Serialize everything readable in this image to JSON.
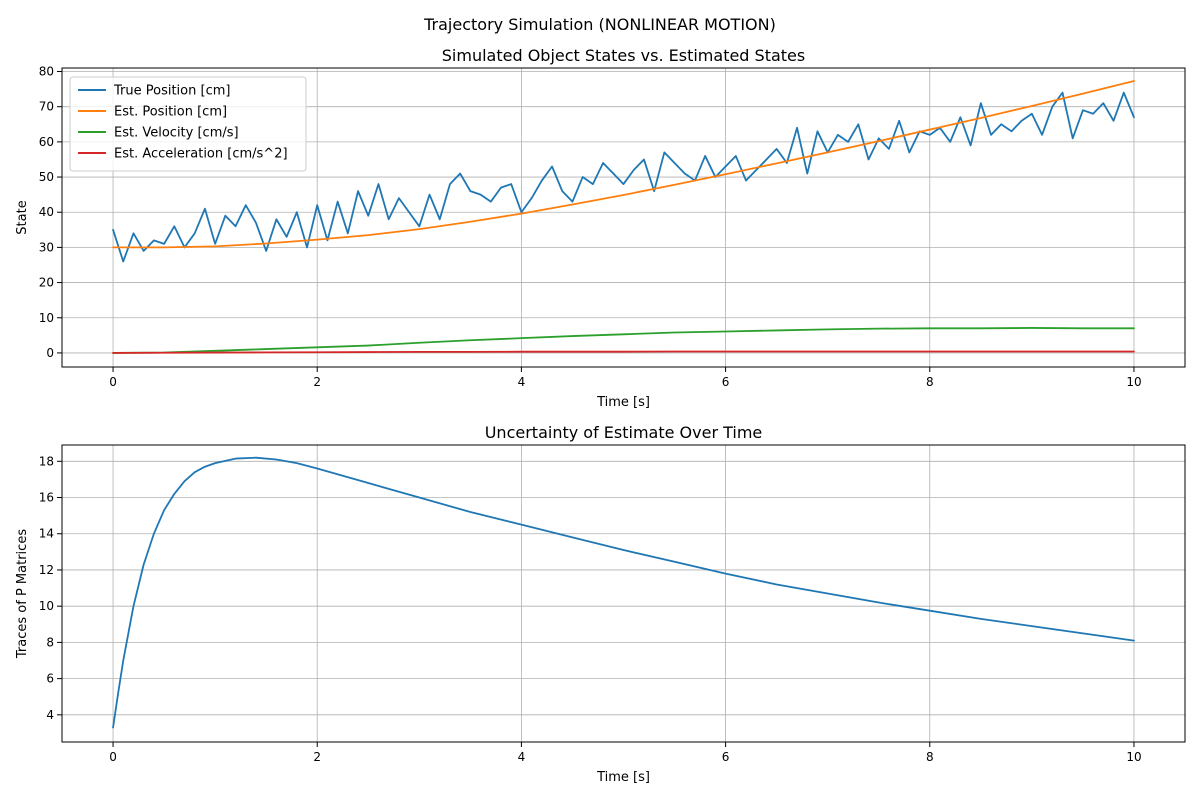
{
  "figure": {
    "suptitle": "Trajectory Simulation (NONLINEAR MOTION)"
  },
  "colors": {
    "blue": "#1f77b4",
    "orange": "#ff7f0e",
    "green": "#2ca02c",
    "red": "#d62728",
    "grid": "#b0b0b0"
  },
  "chart_data": [
    {
      "type": "line",
      "title": "Simulated Object States vs. Estimated States",
      "xlabel": "Time [s]",
      "ylabel": "State",
      "xlim": [
        -0.5,
        10.5
      ],
      "ylim": [
        -4,
        81
      ],
      "xticks": [
        0,
        2,
        4,
        6,
        8,
        10
      ],
      "yticks": [
        0,
        10,
        20,
        30,
        40,
        50,
        60,
        70,
        80
      ],
      "grid": true,
      "legend": "upper-left",
      "series": [
        {
          "name": "True Position [cm]",
          "color": "#1f77b4",
          "x": [
            0,
            0.1,
            0.2,
            0.3,
            0.4,
            0.5,
            0.6,
            0.7,
            0.8,
            0.9,
            1.0,
            1.1,
            1.2,
            1.3,
            1.4,
            1.5,
            1.6,
            1.7,
            1.8,
            1.9,
            2.0,
            2.1,
            2.2,
            2.3,
            2.4,
            2.5,
            2.6,
            2.7,
            2.8,
            2.9,
            3.0,
            3.1,
            3.2,
            3.3,
            3.4,
            3.5,
            3.6,
            3.7,
            3.8,
            3.9,
            4.0,
            4.1,
            4.2,
            4.3,
            4.4,
            4.5,
            4.6,
            4.7,
            4.8,
            4.9,
            5.0,
            5.1,
            5.2,
            5.3,
            5.4,
            5.5,
            5.6,
            5.7,
            5.8,
            5.9,
            6.0,
            6.1,
            6.2,
            6.3,
            6.4,
            6.5,
            6.6,
            6.7,
            6.8,
            6.9,
            7.0,
            7.1,
            7.2,
            7.3,
            7.4,
            7.5,
            7.6,
            7.7,
            7.8,
            7.9,
            8.0,
            8.1,
            8.2,
            8.3,
            8.4,
            8.5,
            8.6,
            8.7,
            8.8,
            8.9,
            9.0,
            9.1,
            9.2,
            9.3,
            9.4,
            9.5,
            9.6,
            9.7,
            9.8,
            9.9,
            10.0
          ],
          "y": [
            35,
            26,
            34,
            29,
            32,
            31,
            36,
            30,
            34,
            41,
            31,
            39,
            36,
            42,
            37,
            29,
            38,
            33,
            40,
            30,
            42,
            32,
            43,
            34,
            46,
            39,
            48,
            38,
            44,
            40,
            36,
            45,
            38,
            48,
            51,
            46,
            45,
            43,
            47,
            48,
            40,
            44,
            49,
            53,
            46,
            43,
            50,
            48,
            54,
            51,
            48,
            52,
            55,
            46,
            57,
            54,
            51,
            49,
            56,
            50,
            53,
            56,
            49,
            52,
            55,
            58,
            54,
            64,
            51,
            63,
            57,
            62,
            60,
            65,
            55,
            61,
            58,
            66,
            57,
            63,
            62,
            64,
            60,
            67,
            59,
            71,
            62,
            65,
            63,
            66,
            68,
            62,
            70,
            74,
            61,
            69,
            68,
            71,
            66,
            74,
            67
          ],
          "note_x_step": 0.1
        },
        {
          "name": "Est. Position [cm]",
          "color": "#ff7f0e",
          "x": [
            0,
            0.5,
            1.0,
            1.5,
            2.0,
            2.5,
            3.0,
            3.5,
            4.0,
            4.5,
            5.0,
            5.5,
            6.0,
            6.5,
            7.0,
            7.5,
            8.0,
            8.5,
            9.0,
            9.5,
            10.0
          ],
          "y": [
            30,
            30,
            30.3,
            31.1,
            32.2,
            33.5,
            35.2,
            37.3,
            39.6,
            42.2,
            44.9,
            47.8,
            50.8,
            53.9,
            57.0,
            60.2,
            63.5,
            66.8,
            70.2,
            73.7,
            77.3
          ]
        },
        {
          "name": "Est. Velocity [cm/s]",
          "color": "#2ca02c",
          "x": [
            0,
            0.5,
            1.0,
            1.5,
            2.0,
            2.5,
            3.0,
            3.5,
            4.0,
            4.5,
            5.0,
            5.5,
            6.0,
            6.5,
            7.0,
            7.5,
            8.0,
            8.5,
            9.0,
            9.5,
            10.0
          ],
          "y": [
            0,
            0.1,
            0.6,
            1.1,
            1.6,
            2.1,
            2.9,
            3.6,
            4.2,
            4.8,
            5.3,
            5.8,
            6.1,
            6.4,
            6.7,
            6.9,
            7.0,
            7.0,
            7.1,
            7.0,
            7.0
          ]
        },
        {
          "name": "Est. Acceleration [cm/s^2]",
          "color": "#d62728",
          "x": [
            0,
            0.5,
            1.0,
            1.5,
            2.0,
            2.5,
            3.0,
            3.5,
            4.0,
            4.5,
            5.0,
            5.5,
            6.0,
            6.5,
            7.0,
            7.5,
            8.0,
            8.5,
            9.0,
            9.5,
            10.0
          ],
          "y": [
            0,
            0.05,
            0.1,
            0.15,
            0.2,
            0.25,
            0.3,
            0.3,
            0.35,
            0.35,
            0.35,
            0.4,
            0.4,
            0.4,
            0.4,
            0.4,
            0.4,
            0.4,
            0.4,
            0.4,
            0.4
          ]
        }
      ]
    },
    {
      "type": "line",
      "title": "Uncertainty of Estimate Over Time",
      "xlabel": "Time [s]",
      "ylabel": "Traces of P Matrices",
      "xlim": [
        -0.5,
        10.5
      ],
      "ylim": [
        2.5,
        18.9
      ],
      "xticks": [
        0,
        2,
        4,
        6,
        8,
        10
      ],
      "yticks": [
        4,
        6,
        8,
        10,
        12,
        14,
        16,
        18
      ],
      "grid": true,
      "series": [
        {
          "name": "",
          "color": "#1f77b4",
          "x": [
            0,
            0.05,
            0.1,
            0.2,
            0.3,
            0.4,
            0.5,
            0.6,
            0.7,
            0.8,
            0.9,
            1.0,
            1.2,
            1.4,
            1.6,
            1.8,
            2.0,
            2.5,
            3.0,
            3.5,
            4.0,
            4.5,
            5.0,
            5.5,
            6.0,
            6.5,
            7.0,
            7.5,
            8.0,
            8.5,
            9.0,
            9.5,
            10.0
          ],
          "y": [
            3.3,
            5.2,
            7.0,
            10.0,
            12.3,
            14.0,
            15.3,
            16.2,
            16.9,
            17.4,
            17.7,
            17.9,
            18.15,
            18.2,
            18.1,
            17.9,
            17.6,
            16.8,
            16.0,
            15.2,
            14.5,
            13.8,
            13.1,
            12.45,
            11.8,
            11.2,
            10.7,
            10.2,
            9.75,
            9.3,
            8.9,
            8.5,
            8.1
          ]
        }
      ]
    }
  ]
}
